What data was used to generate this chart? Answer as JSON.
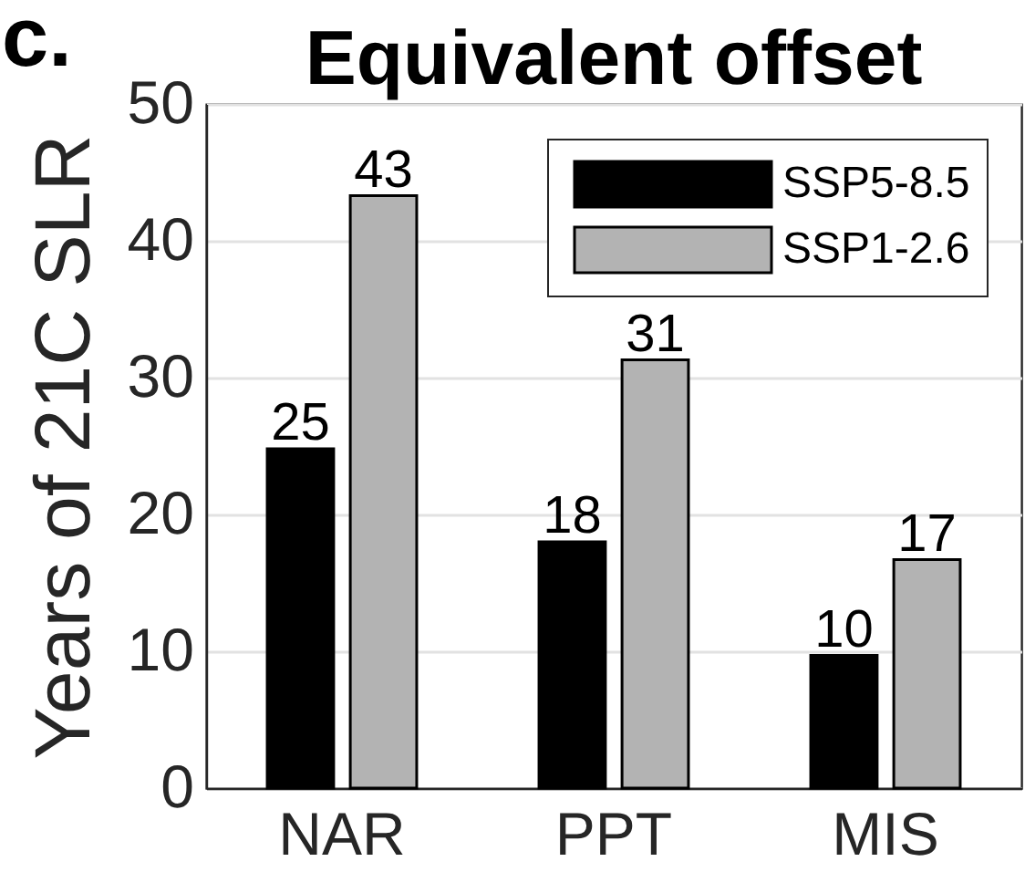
{
  "chart_data": {
    "type": "bar",
    "title": "Equivalent offset",
    "ylabel": "Years of 21C SLR",
    "annotations": [
      "c."
    ],
    "categories": [
      "NAR",
      "PPT",
      "MIS"
    ],
    "series": [
      {
        "name": "SSP5-8.5",
        "color": "#000000",
        "values": [
          24.8,
          18.0,
          9.7
        ],
        "value_labels": [
          "25",
          "18",
          "10"
        ]
      },
      {
        "name": "SSP1-2.6",
        "color": "#b3b3b3",
        "values": [
          43.3,
          31.3,
          16.7
        ],
        "value_labels": [
          "43",
          "31",
          "17"
        ]
      }
    ],
    "ylim": [
      0,
      50
    ],
    "yticks": [
      0,
      10,
      20,
      30,
      40,
      50
    ],
    "grid": "y",
    "legend": "top right"
  }
}
